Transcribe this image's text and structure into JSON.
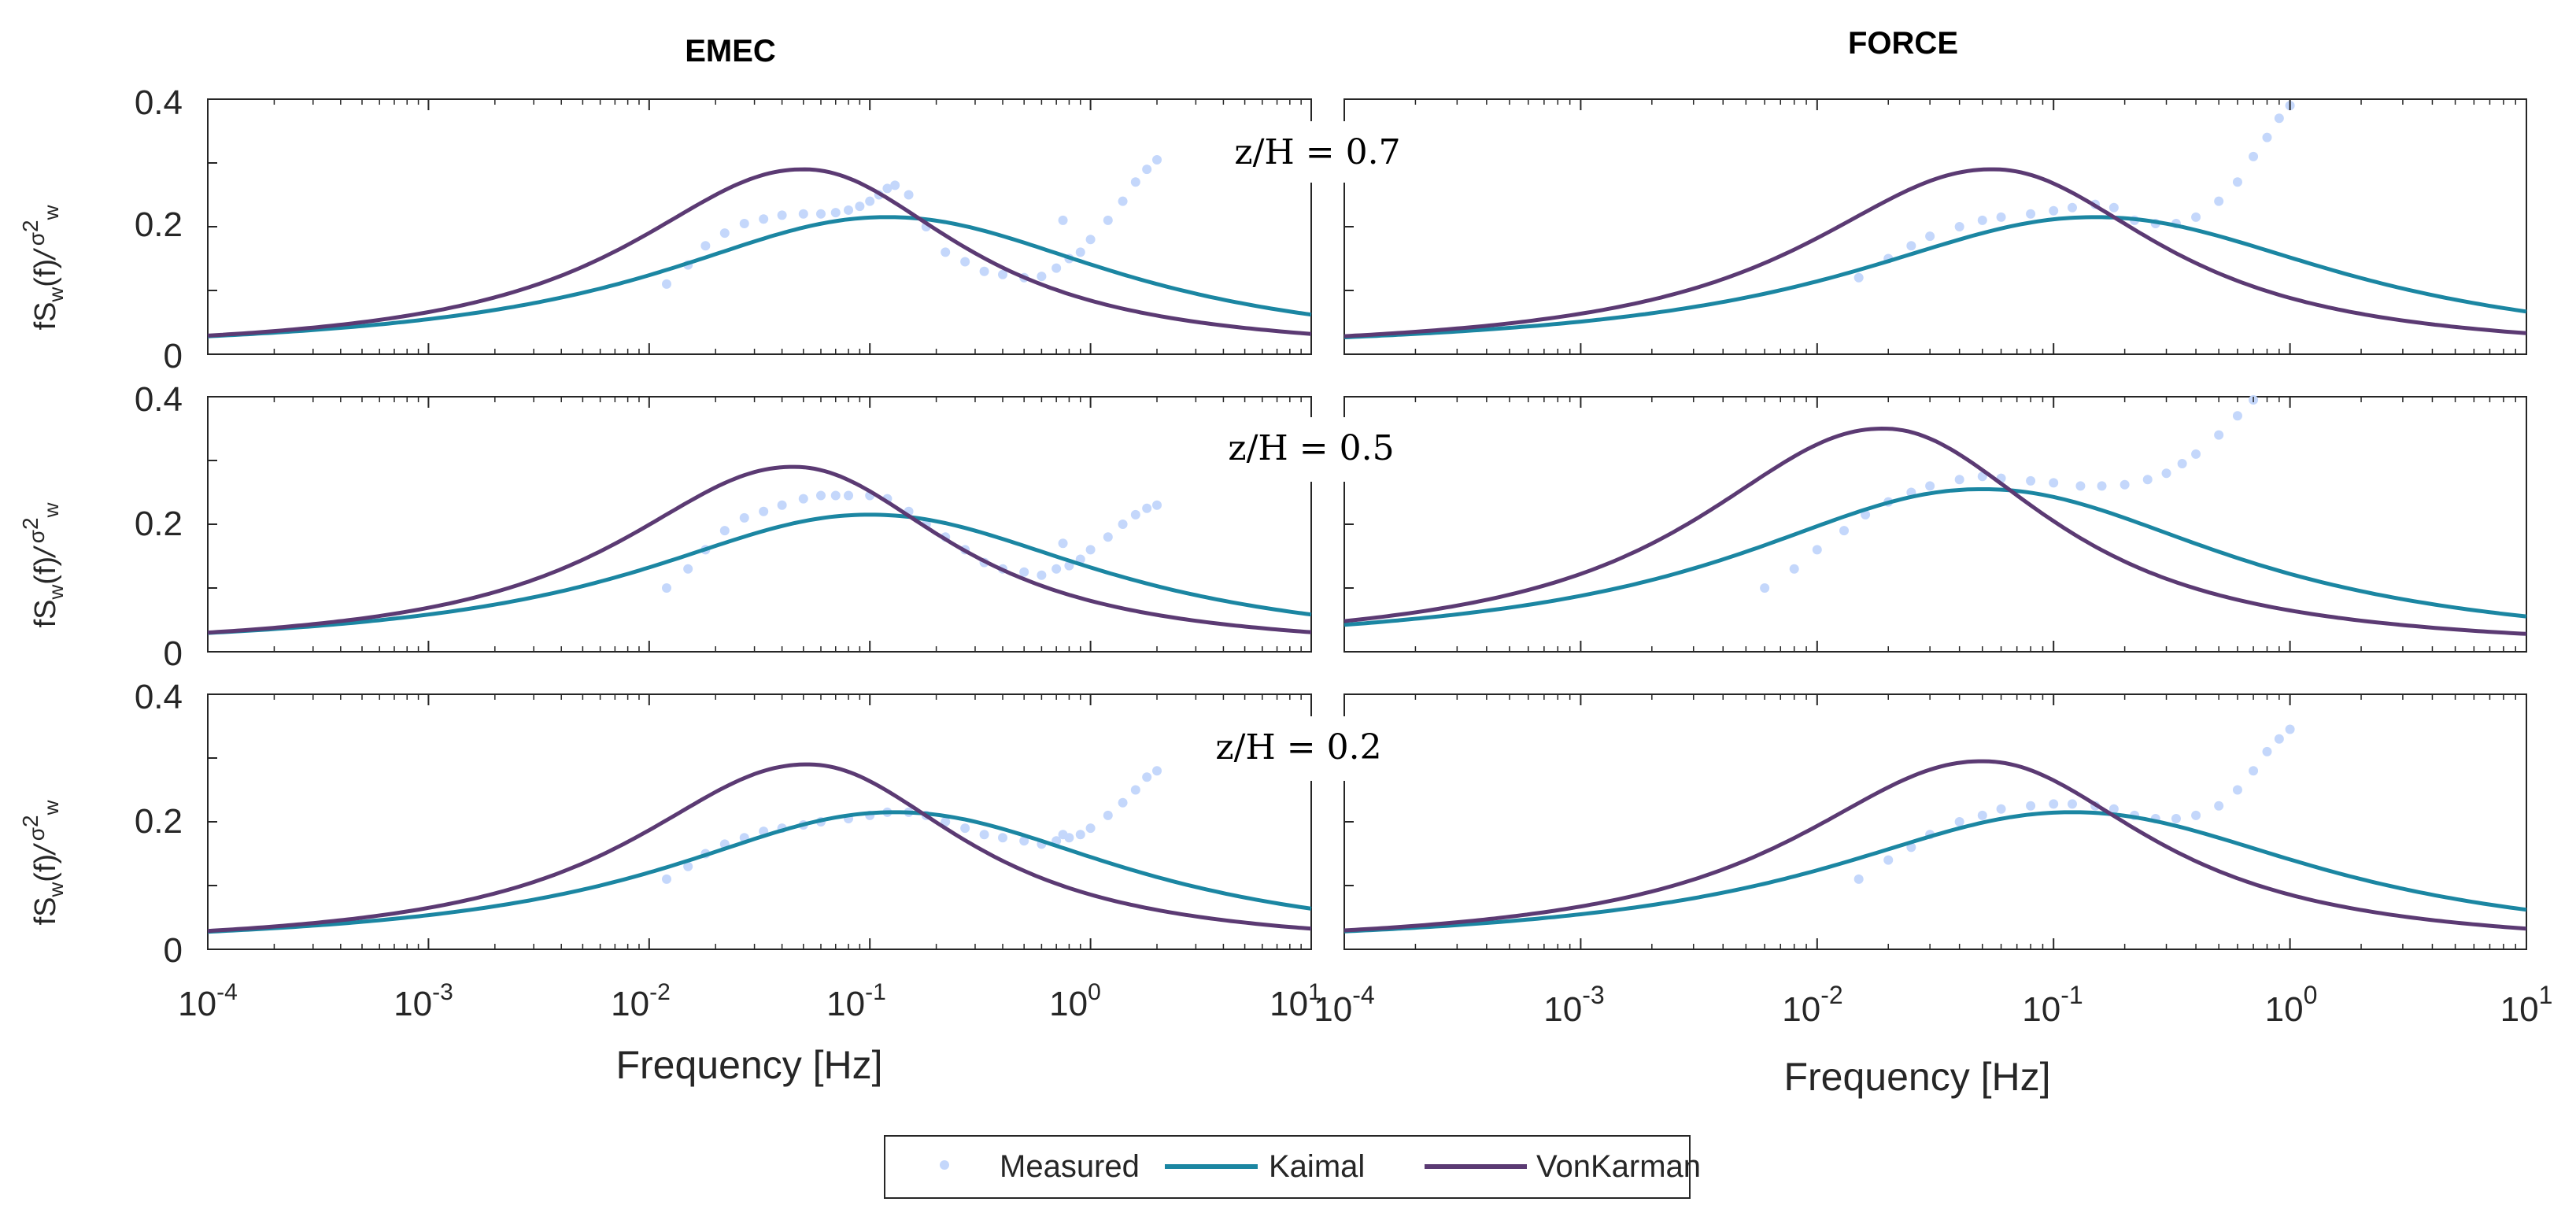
{
  "figure": {
    "colors": {
      "measured": "#c4d7fb",
      "kaimal": "#1b86a2",
      "vonkarman": "#5b3a73",
      "axes": "#262626"
    },
    "columns": [
      "EMEC",
      "FORCE"
    ],
    "row_labels": [
      "z/H = 0.7",
      "z/H = 0.5",
      "z/H = 0.2"
    ],
    "ylabel": {
      "main": "fS",
      "sub1": "w",
      "paren": "(f)",
      "slash": "/",
      "sigma": "σ",
      "sup": "2",
      "sub2": "w"
    },
    "xlabel": "Frequency [Hz]",
    "yticks": [
      "0",
      "0.2",
      "0.4"
    ],
    "xticks": [
      {
        "base": "10",
        "exp": "-4"
      },
      {
        "base": "10",
        "exp": "-3"
      },
      {
        "base": "10",
        "exp": "-2"
      },
      {
        "base": "10",
        "exp": "-1"
      },
      {
        "base": "10",
        "exp": "0"
      },
      {
        "base": "10",
        "exp": "1"
      }
    ],
    "legend": {
      "measured": "Measured",
      "kaimal": "Kaimal",
      "vonkarman": "VonKarman"
    }
  },
  "chart_data": [
    {
      "type": "line",
      "title": "EMEC",
      "subtitle": "z/H = 0.7",
      "xscale": "log",
      "xlim": [
        0.0001,
        10
      ],
      "ylim": [
        0,
        0.4
      ],
      "xlabel": "Frequency [Hz]",
      "ylabel": "fS_w(f)/σ_w^2",
      "series": [
        {
          "name": "Measured",
          "kind": "points",
          "x": [
            0.012,
            0.015,
            0.018,
            0.022,
            0.027,
            0.033,
            0.04,
            0.05,
            0.06,
            0.07,
            0.08,
            0.09,
            0.1,
            0.11,
            0.12,
            0.13,
            0.15,
            0.18,
            0.22,
            0.27,
            0.33,
            0.4,
            0.5,
            0.6,
            0.7,
            0.75,
            0.8,
            0.9,
            1.0,
            1.2,
            1.4,
            1.6,
            1.8,
            2.0
          ],
          "y": [
            0.11,
            0.14,
            0.17,
            0.19,
            0.205,
            0.212,
            0.218,
            0.22,
            0.22,
            0.222,
            0.226,
            0.232,
            0.24,
            0.25,
            0.26,
            0.265,
            0.25,
            0.2,
            0.16,
            0.145,
            0.13,
            0.125,
            0.12,
            0.122,
            0.135,
            0.21,
            0.15,
            0.16,
            0.18,
            0.21,
            0.24,
            0.27,
            0.29,
            0.305
          ]
        },
        {
          "name": "Kaimal",
          "kind": "line",
          "peak_frequency": 0.12,
          "peak_value": 0.215
        },
        {
          "name": "VonKarman",
          "kind": "line",
          "peak_frequency": 0.05,
          "peak_value": 0.29
        }
      ]
    },
    {
      "type": "line",
      "title": "FORCE",
      "subtitle": "z/H = 0.7",
      "xscale": "log",
      "xlim": [
        0.0001,
        10
      ],
      "ylim": [
        0,
        0.4
      ],
      "series": [
        {
          "name": "Measured",
          "kind": "points",
          "x": [
            0.015,
            0.02,
            0.025,
            0.03,
            0.04,
            0.05,
            0.06,
            0.08,
            0.1,
            0.12,
            0.15,
            0.18,
            0.22,
            0.27,
            0.33,
            0.4,
            0.5,
            0.6,
            0.7,
            0.8,
            0.9,
            1.0
          ],
          "y": [
            0.12,
            0.15,
            0.17,
            0.185,
            0.2,
            0.21,
            0.215,
            0.22,
            0.225,
            0.23,
            0.235,
            0.23,
            0.21,
            0.205,
            0.205,
            0.215,
            0.24,
            0.27,
            0.31,
            0.34,
            0.37,
            0.39
          ]
        },
        {
          "name": "Kaimal",
          "kind": "line",
          "peak_frequency": 0.15,
          "peak_value": 0.215
        },
        {
          "name": "VonKarman",
          "kind": "line",
          "peak_frequency": 0.055,
          "peak_value": 0.29
        }
      ]
    },
    {
      "type": "line",
      "title": "EMEC",
      "subtitle": "z/H = 0.5",
      "xscale": "log",
      "xlim": [
        0.0001,
        10
      ],
      "ylim": [
        0,
        0.4
      ],
      "series": [
        {
          "name": "Measured",
          "kind": "points",
          "x": [
            0.012,
            0.015,
            0.018,
            0.022,
            0.027,
            0.033,
            0.04,
            0.05,
            0.06,
            0.07,
            0.08,
            0.1,
            0.12,
            0.15,
            0.18,
            0.22,
            0.27,
            0.33,
            0.4,
            0.5,
            0.6,
            0.7,
            0.75,
            0.8,
            0.9,
            1.0,
            1.2,
            1.4,
            1.6,
            1.8,
            2.0
          ],
          "y": [
            0.1,
            0.13,
            0.16,
            0.19,
            0.21,
            0.22,
            0.23,
            0.24,
            0.245,
            0.245,
            0.245,
            0.245,
            0.24,
            0.22,
            0.2,
            0.18,
            0.16,
            0.14,
            0.13,
            0.125,
            0.12,
            0.13,
            0.17,
            0.135,
            0.145,
            0.16,
            0.18,
            0.2,
            0.215,
            0.225,
            0.23
          ]
        },
        {
          "name": "Kaimal",
          "kind": "line",
          "peak_frequency": 0.1,
          "peak_value": 0.215
        },
        {
          "name": "VonKarman",
          "kind": "line",
          "peak_frequency": 0.045,
          "peak_value": 0.29
        }
      ]
    },
    {
      "type": "line",
      "title": "FORCE",
      "subtitle": "z/H = 0.5",
      "xscale": "log",
      "xlim": [
        0.0001,
        10
      ],
      "ylim": [
        0,
        0.4
      ],
      "series": [
        {
          "name": "Measured",
          "kind": "points",
          "x": [
            0.006,
            0.008,
            0.01,
            0.013,
            0.016,
            0.02,
            0.025,
            0.03,
            0.04,
            0.05,
            0.06,
            0.08,
            0.1,
            0.13,
            0.16,
            0.2,
            0.25,
            0.3,
            0.35,
            0.4,
            0.5,
            0.6,
            0.7
          ],
          "y": [
            0.1,
            0.13,
            0.16,
            0.19,
            0.215,
            0.235,
            0.25,
            0.26,
            0.27,
            0.275,
            0.272,
            0.268,
            0.265,
            0.26,
            0.26,
            0.262,
            0.27,
            0.28,
            0.295,
            0.31,
            0.34,
            0.37,
            0.395
          ]
        },
        {
          "name": "Kaimal",
          "kind": "line",
          "peak_frequency": 0.05,
          "peak_value": 0.255
        },
        {
          "name": "VonKarman",
          "kind": "line",
          "peak_frequency": 0.019,
          "peak_value": 0.35
        }
      ]
    },
    {
      "type": "line",
      "title": "EMEC",
      "subtitle": "z/H = 0.2",
      "xscale": "log",
      "xlim": [
        0.0001,
        10
      ],
      "ylim": [
        0,
        0.4
      ],
      "series": [
        {
          "name": "Measured",
          "kind": "points",
          "x": [
            0.012,
            0.015,
            0.018,
            0.022,
            0.027,
            0.033,
            0.04,
            0.05,
            0.06,
            0.08,
            0.1,
            0.12,
            0.15,
            0.18,
            0.22,
            0.27,
            0.33,
            0.4,
            0.5,
            0.6,
            0.7,
            0.75,
            0.8,
            0.9,
            1.0,
            1.2,
            1.4,
            1.6,
            1.8,
            2.0
          ],
          "y": [
            0.11,
            0.13,
            0.15,
            0.165,
            0.175,
            0.185,
            0.19,
            0.195,
            0.2,
            0.205,
            0.21,
            0.215,
            0.215,
            0.21,
            0.2,
            0.19,
            0.18,
            0.175,
            0.17,
            0.165,
            0.17,
            0.18,
            0.175,
            0.18,
            0.19,
            0.21,
            0.23,
            0.25,
            0.27,
            0.28
          ]
        },
        {
          "name": "Kaimal",
          "kind": "line",
          "peak_frequency": 0.13,
          "peak_value": 0.215
        },
        {
          "name": "VonKarman",
          "kind": "line",
          "peak_frequency": 0.052,
          "peak_value": 0.29
        }
      ]
    },
    {
      "type": "line",
      "title": "FORCE",
      "subtitle": "z/H = 0.2",
      "xscale": "log",
      "xlim": [
        0.0001,
        10
      ],
      "ylim": [
        0,
        0.4
      ],
      "series": [
        {
          "name": "Measured",
          "kind": "points",
          "x": [
            0.015,
            0.02,
            0.025,
            0.03,
            0.04,
            0.05,
            0.06,
            0.08,
            0.1,
            0.12,
            0.15,
            0.18,
            0.22,
            0.27,
            0.33,
            0.4,
            0.5,
            0.6,
            0.7,
            0.8,
            0.9,
            1.0
          ],
          "y": [
            0.11,
            0.14,
            0.16,
            0.18,
            0.2,
            0.21,
            0.22,
            0.225,
            0.228,
            0.228,
            0.225,
            0.22,
            0.21,
            0.205,
            0.205,
            0.21,
            0.225,
            0.25,
            0.28,
            0.31,
            0.33,
            0.345
          ]
        },
        {
          "name": "Kaimal",
          "kind": "line",
          "peak_frequency": 0.12,
          "peak_value": 0.215
        },
        {
          "name": "VonKarman",
          "kind": "line",
          "peak_frequency": 0.05,
          "peak_value": 0.295
        }
      ]
    }
  ]
}
